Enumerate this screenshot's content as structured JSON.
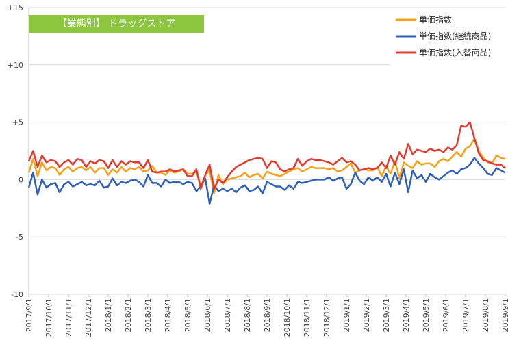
{
  "badge": {
    "text": "【業態別】 ドラッグストア",
    "color": "#8cc63e"
  },
  "chart_data": {
    "type": "line",
    "title": "",
    "xlabel": "",
    "ylabel": "",
    "ylim": [
      -10,
      15
    ],
    "yticks": [
      {
        "value": 15,
        "label": "+15"
      },
      {
        "value": 10,
        "label": "+10"
      },
      {
        "value": 5,
        "label": "+5"
      },
      {
        "value": 0,
        "label": "0"
      },
      {
        "value": -5,
        "label": "-5"
      },
      {
        "value": -10,
        "label": "-10"
      }
    ],
    "xtick_labels": [
      "2017/9/1",
      "2017/10/1",
      "2017/11/1",
      "2017/12/1",
      "2018/1/1",
      "2018/2/1",
      "2018/3/1",
      "2018/4/1",
      "2018/5/1",
      "2018/6/1",
      "2018/7/1",
      "2018/8/1",
      "2018/9/1",
      "2018/10/1",
      "2018/11/1",
      "2018/12/1",
      "2019/1/1",
      "2019/2/1",
      "2019/3/1",
      "2019/4/1",
      "2019/5/1",
      "2019/6/1",
      "2019/7/1",
      "2019/8/1",
      "2019/9/1"
    ],
    "grid": "horizontal",
    "legend_position": "top-right",
    "series": [
      {
        "name": "単価指数",
        "color": "#f5a01a",
        "values": [
          0.6,
          1.8,
          0.3,
          1.5,
          0.8,
          1.1,
          1.0,
          0.4,
          0.9,
          1.1,
          0.7,
          1.0,
          1.1,
          0.8,
          1.1,
          0.6,
          1.0,
          1.0,
          0.4,
          0.9,
          0.6,
          1.1,
          0.7,
          1.0,
          0.9,
          1.1,
          0.7,
          0.8,
          1.2,
          0.6,
          0.6,
          0.4,
          0.8,
          0.6,
          0.7,
          0.9,
          0.5,
          0.5,
          0.7,
          -0.6,
          0.4,
          0.8,
          -1.2,
          0.4,
          -0.4,
          0.0,
          0.1,
          0.2,
          0.3,
          0.6,
          0.2,
          0.4,
          0.5,
          0.1,
          0.7,
          0.5,
          0.4,
          0.3,
          0.5,
          0.7,
          0.9,
          1.0,
          0.7,
          0.9,
          1.1,
          1.0,
          1.0,
          1.0,
          0.9,
          1.0,
          0.7,
          0.8,
          1.1,
          1.4,
          0.6,
          0.8,
          0.9,
          0.8,
          0.8,
          1.1,
          0.3,
          1.2,
          0.5,
          1.6,
          0.1,
          1.5,
          1.2,
          1.0,
          1.6,
          1.3,
          1.4,
          1.4,
          1.1,
          1.6,
          1.8,
          1.6,
          2.0,
          2.4,
          2.0,
          2.7,
          2.9,
          3.6,
          2.5,
          1.9,
          1.5,
          1.4,
          2.1,
          1.9,
          1.8
        ]
      },
      {
        "name": "単価指数(継続商品)",
        "color": "#2e60b8",
        "values": [
          -0.7,
          0.6,
          -1.3,
          0.0,
          -0.7,
          -0.4,
          -0.3,
          -1.1,
          -0.4,
          -0.2,
          -0.6,
          -0.4,
          -0.2,
          -0.5,
          -0.4,
          -0.5,
          -0.1,
          -0.7,
          -0.6,
          0.1,
          -0.5,
          -0.2,
          -0.3,
          -0.1,
          0.0,
          -0.2,
          -0.6,
          0.4,
          -0.3,
          -0.3,
          -0.6,
          0.0,
          -0.3,
          -0.2,
          -0.2,
          -0.4,
          -0.2,
          -0.3,
          -1.0,
          -0.6,
          0.1,
          -2.1,
          -0.5,
          -1.0,
          -0.8,
          -1.0,
          -0.8,
          -1.1,
          -0.7,
          -0.5,
          -1.0,
          -0.9,
          -0.6,
          -1.2,
          -0.2,
          -0.4,
          -0.6,
          -0.6,
          -0.9,
          -0.5,
          -0.8,
          -0.2,
          -0.3,
          -0.2,
          -0.1,
          0.0,
          0.0,
          0.0,
          0.2,
          -0.1,
          0.1,
          0.2,
          -0.8,
          -0.4,
          0.6,
          -0.1,
          -0.4,
          0.2,
          -0.1,
          0.2,
          -0.2,
          0.5,
          -0.6,
          0.6,
          -0.4,
          0.9,
          -1.1,
          0.8,
          0.1,
          0.4,
          -0.2,
          0.5,
          0.2,
          0.0,
          0.3,
          0.6,
          0.8,
          0.5,
          0.9,
          1.0,
          1.3,
          1.9,
          1.4,
          1.0,
          0.5,
          0.4,
          1.0,
          0.8,
          0.6
        ]
      },
      {
        "name": "単価指数(入替商品)",
        "color": "#e23a2e",
        "values": [
          1.6,
          2.5,
          1.1,
          2.1,
          1.5,
          1.7,
          1.6,
          1.1,
          1.5,
          1.7,
          1.3,
          1.8,
          1.7,
          1.1,
          1.6,
          1.4,
          1.7,
          1.6,
          1.0,
          1.7,
          1.1,
          1.6,
          1.3,
          1.6,
          1.5,
          1.5,
          1.0,
          1.7,
          0.7,
          0.6,
          0.7,
          0.7,
          0.9,
          0.7,
          0.8,
          0.9,
          0.3,
          0.3,
          0.9,
          -0.8,
          0.4,
          1.3,
          -0.8,
          0.0,
          -0.3,
          0.2,
          0.7,
          1.1,
          1.3,
          1.5,
          1.7,
          1.8,
          1.9,
          1.8,
          1.0,
          1.6,
          1.5,
          0.9,
          0.7,
          0.9,
          1.0,
          1.8,
          1.2,
          1.6,
          1.8,
          1.7,
          1.7,
          1.6,
          1.5,
          1.3,
          1.6,
          1.9,
          1.5,
          1.6,
          1.3,
          0.8,
          0.9,
          1.0,
          0.9,
          1.0,
          1.5,
          1.0,
          2.1,
          1.3,
          2.4,
          1.8,
          3.1,
          2.2,
          2.6,
          2.5,
          2.4,
          2.7,
          2.5,
          2.6,
          2.4,
          2.8,
          2.6,
          3.0,
          4.7,
          4.6,
          5.0,
          3.6,
          2.3,
          1.7,
          1.6,
          1.4,
          1.3,
          1.3,
          1.0
        ]
      }
    ]
  }
}
